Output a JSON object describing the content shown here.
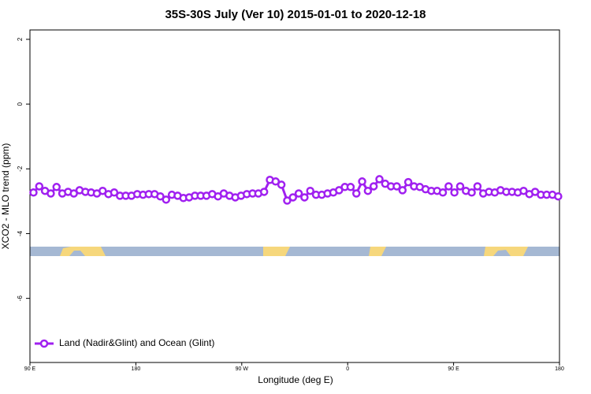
{
  "chart_data": {
    "type": "line",
    "title": "35S-30S July (Ver 10)   2015-01-01 to 2020-12-18",
    "x_label": "Longitude (deg E)",
    "y_label": "XCO2 - MLO trend (ppm)",
    "xlim": [
      90,
      540
    ],
    "ylim": [
      -7.98,
      2.29
    ],
    "xticks": [
      {
        "value": 90,
        "label": "90 E"
      },
      {
        "value": 180,
        "label": "180"
      },
      {
        "value": 270,
        "label": "90 W"
      },
      {
        "value": 360,
        "label": "0"
      },
      {
        "value": 450,
        "label": "90 E"
      },
      {
        "value": 540,
        "label": "180"
      }
    ],
    "yticks": [
      -6,
      -4,
      -2,
      0,
      2
    ],
    "legend": "bottomleft",
    "x": [
      93.0,
      97.9,
      102.8,
      107.7,
      112.6,
      117.5,
      122.4,
      127.3,
      132.2,
      137.1,
      142.0,
      146.9,
      151.8,
      156.7,
      161.6,
      166.5,
      171.4,
      176.3,
      181.2,
      186.1,
      191.0,
      195.9,
      200.8,
      205.7,
      210.6,
      215.5,
      220.4,
      225.3,
      230.2,
      235.1,
      240.0,
      244.9,
      249.8,
      254.7,
      259.6,
      264.5,
      269.4,
      274.3,
      279.2,
      284.1,
      289.0,
      293.9,
      298.8,
      303.7,
      308.6,
      313.5,
      318.4,
      323.3,
      328.2,
      333.1,
      338.0,
      342.9,
      347.8,
      352.7,
      357.6,
      362.5,
      367.4,
      372.3,
      377.2,
      382.1,
      387.0,
      391.9,
      396.8,
      401.7,
      406.6,
      411.5,
      416.4,
      421.3,
      426.2,
      431.1,
      436.0,
      440.9,
      445.8,
      450.7,
      455.6,
      460.5,
      465.4,
      470.3,
      475.2,
      480.1,
      485.0,
      489.9,
      494.8,
      499.7,
      504.6,
      509.5,
      514.4,
      519.3,
      524.2,
      529.1,
      534.0,
      538.9
    ],
    "series": [
      {
        "name": "Land (Nadir&Glint) and Ocean (Glint)",
        "color": "#a020f0",
        "values": [
          -2.73,
          -2.54,
          -2.68,
          -2.76,
          -2.56,
          -2.76,
          -2.71,
          -2.76,
          -2.66,
          -2.71,
          -2.73,
          -2.76,
          -2.68,
          -2.78,
          -2.73,
          -2.83,
          -2.83,
          -2.83,
          -2.78,
          -2.8,
          -2.78,
          -2.78,
          -2.85,
          -2.95,
          -2.8,
          -2.83,
          -2.9,
          -2.88,
          -2.83,
          -2.83,
          -2.83,
          -2.78,
          -2.85,
          -2.76,
          -2.83,
          -2.88,
          -2.83,
          -2.78,
          -2.76,
          -2.76,
          -2.71,
          -2.34,
          -2.39,
          -2.49,
          -2.98,
          -2.88,
          -2.76,
          -2.88,
          -2.68,
          -2.8,
          -2.8,
          -2.76,
          -2.73,
          -2.66,
          -2.56,
          -2.56,
          -2.76,
          -2.39,
          -2.68,
          -2.54,
          -2.32,
          -2.46,
          -2.54,
          -2.54,
          -2.66,
          -2.41,
          -2.54,
          -2.56,
          -2.63,
          -2.68,
          -2.68,
          -2.73,
          -2.54,
          -2.73,
          -2.54,
          -2.68,
          -2.73,
          -2.54,
          -2.76,
          -2.71,
          -2.73,
          -2.66,
          -2.71,
          -2.71,
          -2.73,
          -2.68,
          -2.78,
          -2.71,
          -2.8,
          -2.8,
          -2.8,
          -2.85
        ]
      }
    ]
  }
}
